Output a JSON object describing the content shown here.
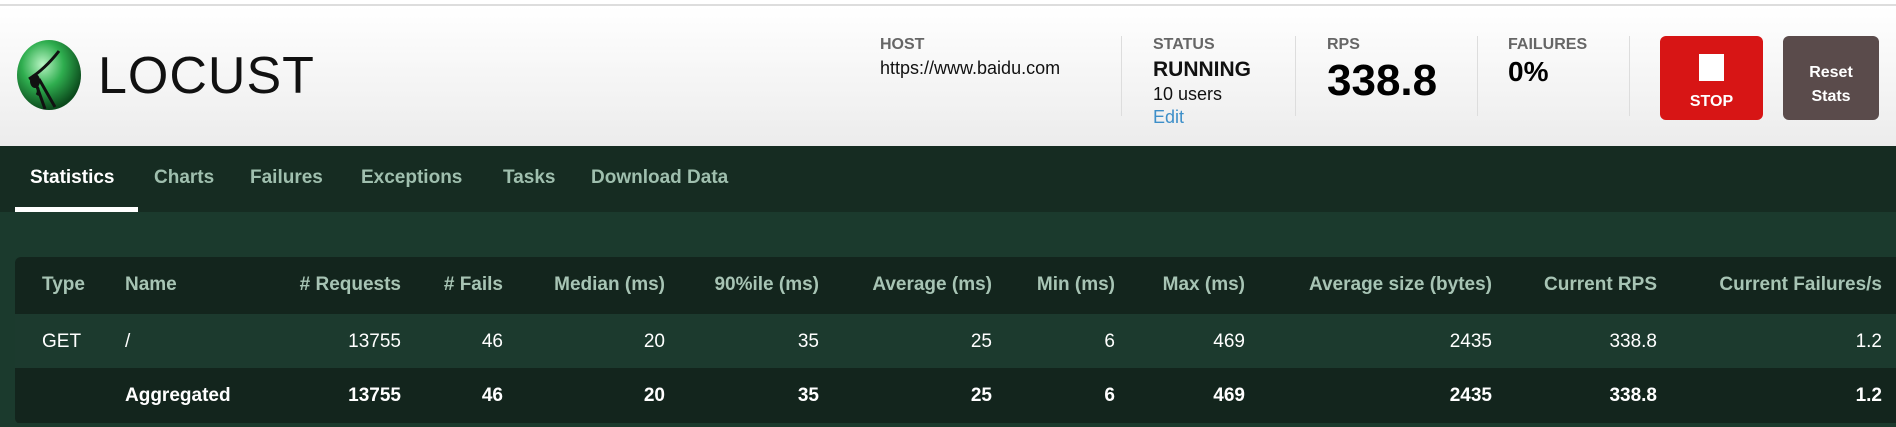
{
  "brand": {
    "name": "LOCUST"
  },
  "header": {
    "host": {
      "label": "HOST",
      "value": "https://www.baidu.com"
    },
    "status": {
      "label": "STATUS",
      "value": "RUNNING",
      "users": "10 users",
      "edit": "Edit"
    },
    "rps": {
      "label": "RPS",
      "value": "338.8"
    },
    "failures": {
      "label": "FAILURES",
      "value": "0%"
    },
    "stop": {
      "label": "STOP",
      "icon": "stop-square-icon",
      "color": "#d71515"
    },
    "reset": {
      "label_line1": "Reset",
      "label_line2": "Stats",
      "color": "#5a4b4b"
    }
  },
  "tabs": [
    {
      "label": "Statistics",
      "active": true
    },
    {
      "label": "Charts"
    },
    {
      "label": "Failures"
    },
    {
      "label": "Exceptions"
    },
    {
      "label": "Tasks"
    },
    {
      "label": "Download Data"
    }
  ],
  "table": {
    "columns": [
      "Type",
      "Name",
      "# Requests",
      "# Fails",
      "Median (ms)",
      "90%ile (ms)",
      "Average (ms)",
      "Min (ms)",
      "Max (ms)",
      "Average size (bytes)",
      "Current RPS",
      "Current Failures/s"
    ],
    "rows": [
      [
        "GET",
        "/",
        "13755",
        "46",
        "20",
        "35",
        "25",
        "6",
        "469",
        "2435",
        "338.8",
        "1.2"
      ],
      [
        "",
        "Aggregated",
        "13755",
        "46",
        "20",
        "35",
        "25",
        "6",
        "469",
        "2435",
        "338.8",
        "1.2"
      ]
    ]
  }
}
